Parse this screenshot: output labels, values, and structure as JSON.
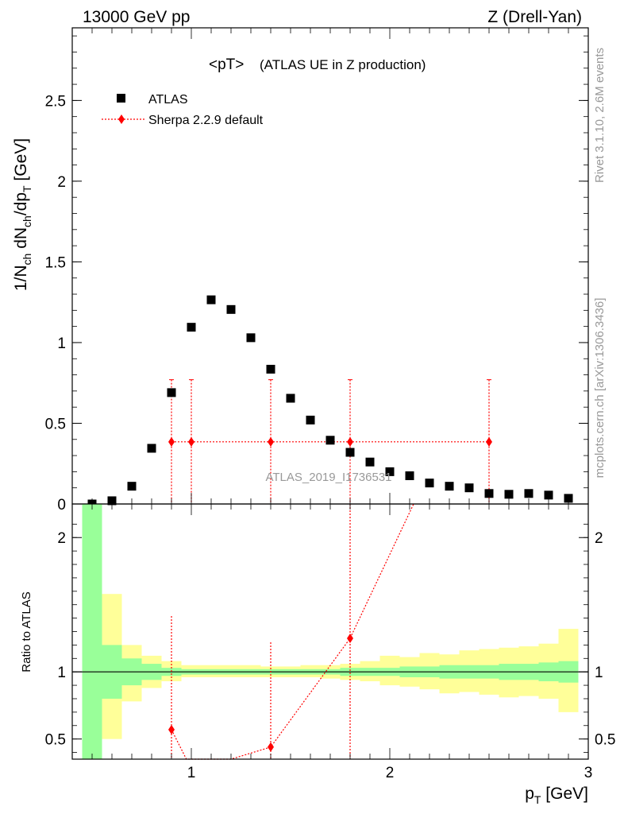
{
  "header": {
    "left": "13000 GeV pp",
    "right": "Z (Drell-Yan)"
  },
  "side_labels": {
    "rivet": "Rivet 3.1.10,  2.6M events",
    "mcplots": "mcplots.cern.ch [arXiv:1306.3436]"
  },
  "watermark": "ATLAS_2019_I1736531",
  "colors": {
    "band_inner": "#99ff99",
    "band_outer": "#ffff99",
    "sherpa": "#ff0000",
    "atlas": "#000000"
  },
  "chart_data": [
    {
      "type": "scatter",
      "title_main": "<pT>",
      "title_sub": "(ATLAS UE in Z production)",
      "ylabel_parts": [
        "1/N",
        "ch",
        " dN",
        "ch",
        "/dp",
        "T",
        " [GeV]"
      ],
      "ylim": [
        0,
        2.95
      ],
      "xlim": [
        0.4,
        3.0
      ],
      "y_ticks": [
        "0",
        "0.5",
        "1",
        "1.5",
        "2",
        "2.5"
      ],
      "y_tick_values": [
        0,
        0.5,
        1,
        1.5,
        2,
        2.5
      ],
      "legend_position": "top-left",
      "series": [
        {
          "name": "ATLAS",
          "marker": "square",
          "x": [
            0.5,
            0.6,
            0.7,
            0.8,
            0.9,
            1.0,
            1.1,
            1.2,
            1.3,
            1.4,
            1.5,
            1.6,
            1.7,
            1.8,
            1.9,
            2.0,
            2.1,
            2.2,
            2.3,
            2.4,
            2.5,
            2.6,
            2.7,
            2.8,
            2.9
          ],
          "y": [
            0.0,
            0.02,
            0.11,
            0.345,
            0.69,
            1.095,
            1.265,
            1.205,
            1.03,
            0.835,
            0.655,
            0.52,
            0.395,
            0.32,
            0.26,
            0.2,
            0.175,
            0.13,
            0.11,
            0.1,
            0.065,
            0.06,
            0.065,
            0.055,
            0.035
          ]
        },
        {
          "name": "Sherpa 2.2.9 default",
          "marker": "diamond",
          "x": [
            0.9,
            1.0,
            1.4,
            1.8,
            2.5
          ],
          "y": [
            0.385,
            0.385,
            0.385,
            0.385,
            0.385
          ],
          "y_err_up": [
            0.385,
            0.385,
            0.385,
            0.385,
            0.385
          ]
        }
      ]
    },
    {
      "type": "line",
      "ylabel": "Ratio to ATLAS",
      "ylim": [
        0.35,
        2.25
      ],
      "xlim": [
        0.4,
        3.0
      ],
      "xlabel_main": "p",
      "xlabel_sub": "T",
      "xlabel_unit": " [GeV]",
      "x_ticks": [
        "1",
        "2",
        "3"
      ],
      "x_tick_values": [
        1,
        2,
        3
      ],
      "y_ticks": [
        "0.5",
        "1",
        "2"
      ],
      "y_tick_values": [
        0.5,
        1,
        2
      ],
      "reference_line": 1,
      "bands": {
        "bin_edges": [
          0.45,
          0.55,
          0.65,
          0.75,
          0.85,
          0.95,
          1.05,
          1.15,
          1.25,
          1.35,
          1.45,
          1.55,
          1.65,
          1.75,
          1.85,
          1.95,
          2.05,
          2.15,
          2.25,
          2.35,
          2.45,
          2.55,
          2.65,
          2.75,
          2.85,
          2.95
        ],
        "inner_lo": [
          0.35,
          0.8,
          0.9,
          0.94,
          0.97,
          0.98,
          0.98,
          0.98,
          0.98,
          0.98,
          0.98,
          0.98,
          0.98,
          0.97,
          0.97,
          0.97,
          0.96,
          0.96,
          0.95,
          0.95,
          0.95,
          0.94,
          0.94,
          0.93,
          0.92
        ],
        "inner_hi": [
          2.25,
          1.2,
          1.1,
          1.06,
          1.03,
          1.02,
          1.02,
          1.02,
          1.02,
          1.02,
          1.02,
          1.02,
          1.02,
          1.03,
          1.03,
          1.03,
          1.04,
          1.04,
          1.05,
          1.05,
          1.05,
          1.06,
          1.06,
          1.07,
          1.08
        ],
        "outer_lo": [
          0.35,
          0.5,
          0.78,
          0.88,
          0.93,
          0.96,
          0.96,
          0.96,
          0.96,
          0.96,
          0.96,
          0.96,
          0.95,
          0.94,
          0.93,
          0.9,
          0.89,
          0.87,
          0.84,
          0.85,
          0.83,
          0.81,
          0.82,
          0.8,
          0.7
        ],
        "outer_hi": [
          2.25,
          1.58,
          1.2,
          1.12,
          1.08,
          1.05,
          1.05,
          1.05,
          1.05,
          1.04,
          1.04,
          1.05,
          1.05,
          1.06,
          1.08,
          1.12,
          1.11,
          1.14,
          1.13,
          1.16,
          1.17,
          1.18,
          1.19,
          1.21,
          1.32
        ]
      },
      "series": [
        {
          "name": "Sherpa 2.2.9 default",
          "marker": "diamond",
          "x": [
            0.9,
            0.975,
            1.2,
            1.4,
            1.8,
            2.12
          ],
          "y": [
            0.57,
            0.35,
            0.35,
            0.44,
            1.25,
            2.25
          ],
          "marker_mask": [
            true,
            false,
            false,
            true,
            true,
            false
          ]
        }
      ]
    }
  ]
}
